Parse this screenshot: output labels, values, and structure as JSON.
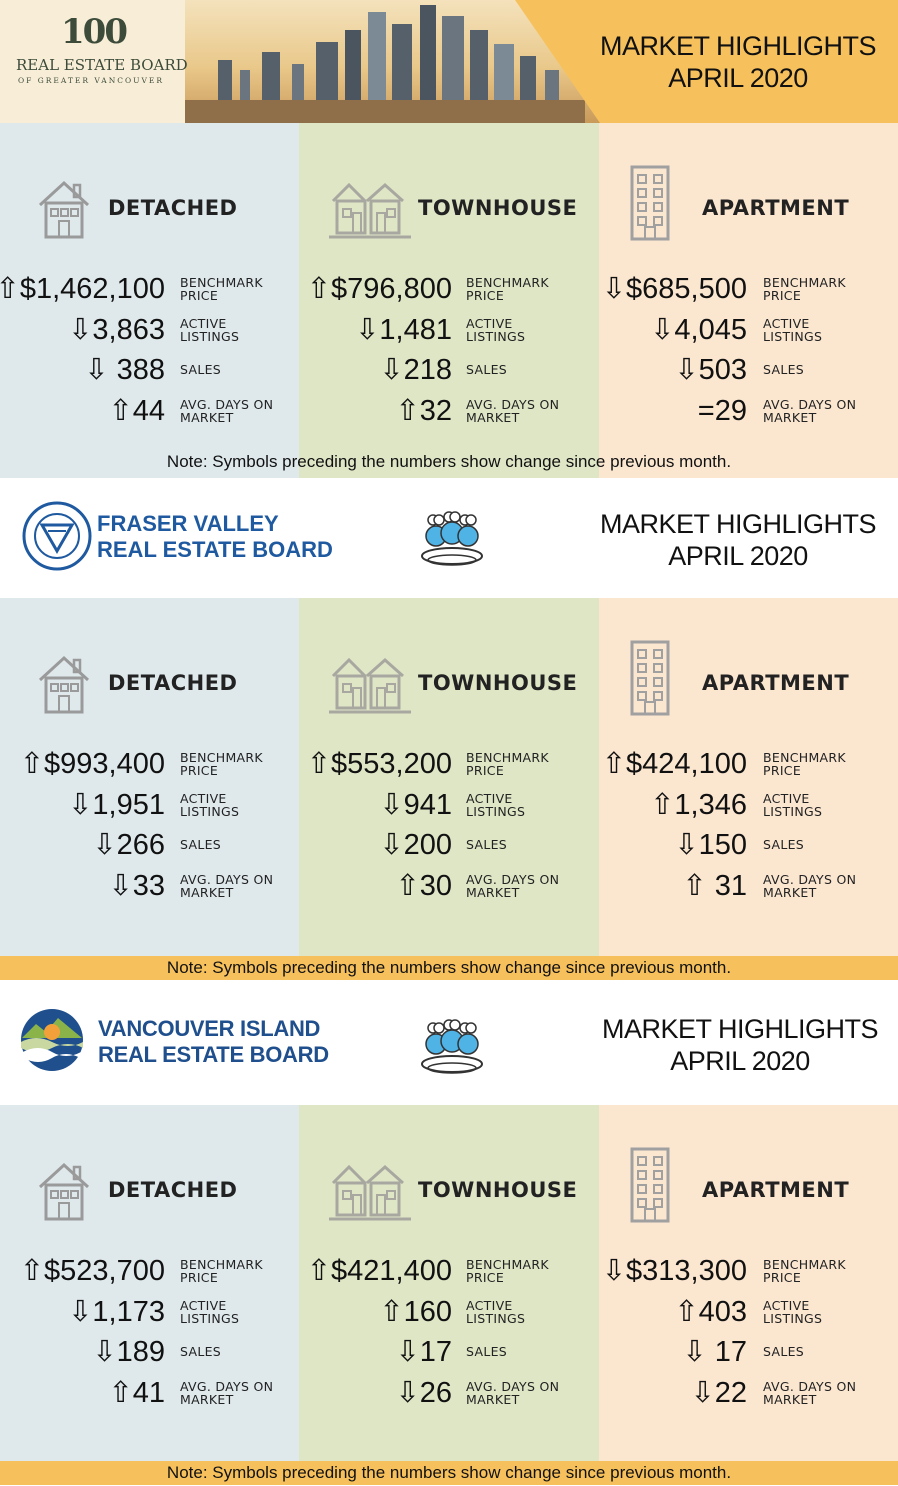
{
  "sections": [
    {
      "board": "REAL ESTATE BOARD OF GREATER VANCOUVER",
      "logo_number": "100",
      "logo_line1": "REAL ESTATE BOARD",
      "logo_line2": "OF GREATER VANCOUVER",
      "title_line1": "MARKET HIGHLIGHTS",
      "title_line2": "APRIL 2020",
      "note": "Note: Symbols preceding the numbers show change since previous month.",
      "columns": [
        {
          "type": "DETACHED",
          "icon": "house-icon",
          "stats": [
            {
              "value": "⇧$1,462,100",
              "label": "BENCHMARK PRICE"
            },
            {
              "value": "⇩3,863",
              "label": "ACTIVE LISTINGS"
            },
            {
              "value": "⇩ 388",
              "label": "SALES"
            },
            {
              "value": "⇧44",
              "label": "AVG. DAYS ON MARKET"
            }
          ]
        },
        {
          "type": "TOWNHOUSE",
          "icon": "townhouse-icon",
          "stats": [
            {
              "value": "⇧$796,800",
              "label": "BENCHMARK PRICE"
            },
            {
              "value": "⇩1,481",
              "label": "ACTIVE LISTINGS"
            },
            {
              "value": "⇩218",
              "label": "SALES"
            },
            {
              "value": "⇧32",
              "label": "AVG. DAYS ON MARKET"
            }
          ]
        },
        {
          "type": "APARTMENT",
          "icon": "apartment-icon",
          "stats": [
            {
              "value": "⇩$685,500",
              "label": "BENCHMARK PRICE"
            },
            {
              "value": "⇩4,045",
              "label": "ACTIVE LISTINGS"
            },
            {
              "value": "⇩503",
              "label": "SALES"
            },
            {
              "value": "=29",
              "label": "AVG. DAYS ON MARKET"
            }
          ]
        }
      ]
    },
    {
      "board_line1": "FRASER VALLEY",
      "board_line2": "REAL ESTATE BOARD",
      "seal_text": "FRASER VALLEY REAL ESTATE BOARD",
      "title_line1": "MARKET HIGHLIGHTS",
      "title_line2": "APRIL 2020",
      "note": "Note: Symbols preceding the numbers show change since previous month.",
      "columns": [
        {
          "type": "DETACHED",
          "icon": "house-icon",
          "stats": [
            {
              "value": "⇧$993,400",
              "label": "BENCHMARK PRICE"
            },
            {
              "value": "⇩1,951",
              "label": "ACTIVE LISTINGS"
            },
            {
              "value": "⇩266",
              "label": "SALES"
            },
            {
              "value": "⇩33",
              "label": "AVG. DAYS ON MARKET"
            }
          ]
        },
        {
          "type": "TOWNHOUSE",
          "icon": "townhouse-icon",
          "stats": [
            {
              "value": "⇧$553,200",
              "label": "BENCHMARK PRICE"
            },
            {
              "value": "⇩941",
              "label": "ACTIVE LISTINGS"
            },
            {
              "value": "⇩200",
              "label": "SALES"
            },
            {
              "value": "⇧30",
              "label": "AVG. DAYS ON MARKET"
            }
          ]
        },
        {
          "type": "APARTMENT",
          "icon": "apartment-icon",
          "stats": [
            {
              "value": "⇧$424,100",
              "label": "BENCHMARK PRICE"
            },
            {
              "value": "⇧1,346",
              "label": "ACTIVE LISTINGS"
            },
            {
              "value": "⇩150",
              "label": "SALES"
            },
            {
              "value": "⇧ 31",
              "label": "AVG. DAYS ON MARKET"
            }
          ]
        }
      ]
    },
    {
      "board_line1": "VANCOUVER ISLAND",
      "board_line2": "REAL ESTATE BOARD",
      "title_line1": "MARKET HIGHLIGHTS",
      "title_line2": "APRIL 2020",
      "note": "Note: Symbols preceding the numbers show change since previous month.",
      "columns": [
        {
          "type": "DETACHED",
          "icon": "house-icon",
          "stats": [
            {
              "value": "⇧$523,700",
              "label": "BENCHMARK PRICE"
            },
            {
              "value": "⇩1,173",
              "label": "ACTIVE LISTINGS"
            },
            {
              "value": "⇩189",
              "label": "SALES"
            },
            {
              "value": "⇧41",
              "label": "AVG. DAYS ON MARKET"
            }
          ]
        },
        {
          "type": "TOWNHOUSE",
          "icon": "townhouse-icon",
          "stats": [
            {
              "value": "⇧$421,400",
              "label": "BENCHMARK PRICE"
            },
            {
              "value": "⇧160",
              "label": "ACTIVE LISTINGS"
            },
            {
              "value": "⇩17",
              "label": "SALES"
            },
            {
              "value": "⇩26",
              "label": "AVG. DAYS ON MARKET"
            }
          ]
        },
        {
          "type": "APARTMENT",
          "icon": "apartment-icon",
          "stats": [
            {
              "value": "⇩$313,300",
              "label": "BENCHMARK PRICE"
            },
            {
              "value": "⇧403",
              "label": "ACTIVE LISTINGS"
            },
            {
              "value": "⇩ 17",
              "label": "SALES"
            },
            {
              "value": "⇩22",
              "label": "AVG. DAYS ON MARKET"
            }
          ]
        }
      ]
    }
  ],
  "colors": {
    "detached_bg": "#dfe9ec",
    "townhouse_bg": "#dfe6c6",
    "apartment_bg": "#fbe6d0",
    "note_bar": "#f6c15c",
    "fv_blue": "#1f5aa0",
    "vi_blue": "#1f4f8c"
  }
}
